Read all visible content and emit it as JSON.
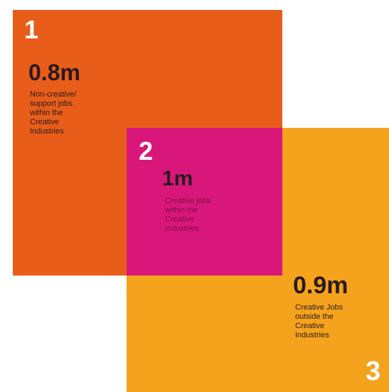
{
  "colors": {
    "orange": "#e85d1a",
    "magenta": "#d9177a",
    "yellow": "#f5a31c",
    "text_dark": "#2a1a1f",
    "number_white": "#ffffff"
  },
  "segments": [
    {
      "number": "1",
      "value": "0.8m",
      "description": "Non-creative/\nsupport jobs\nwithin the\nCreative\nIndustries"
    },
    {
      "number": "2",
      "value": "1m",
      "description": "Creative jobs\nwithin the\nCreative\nIndustries"
    },
    {
      "number": "3",
      "value": "0.9m",
      "description": "Creative Jobs\noutside the\nCreative\nIndustries"
    }
  ]
}
